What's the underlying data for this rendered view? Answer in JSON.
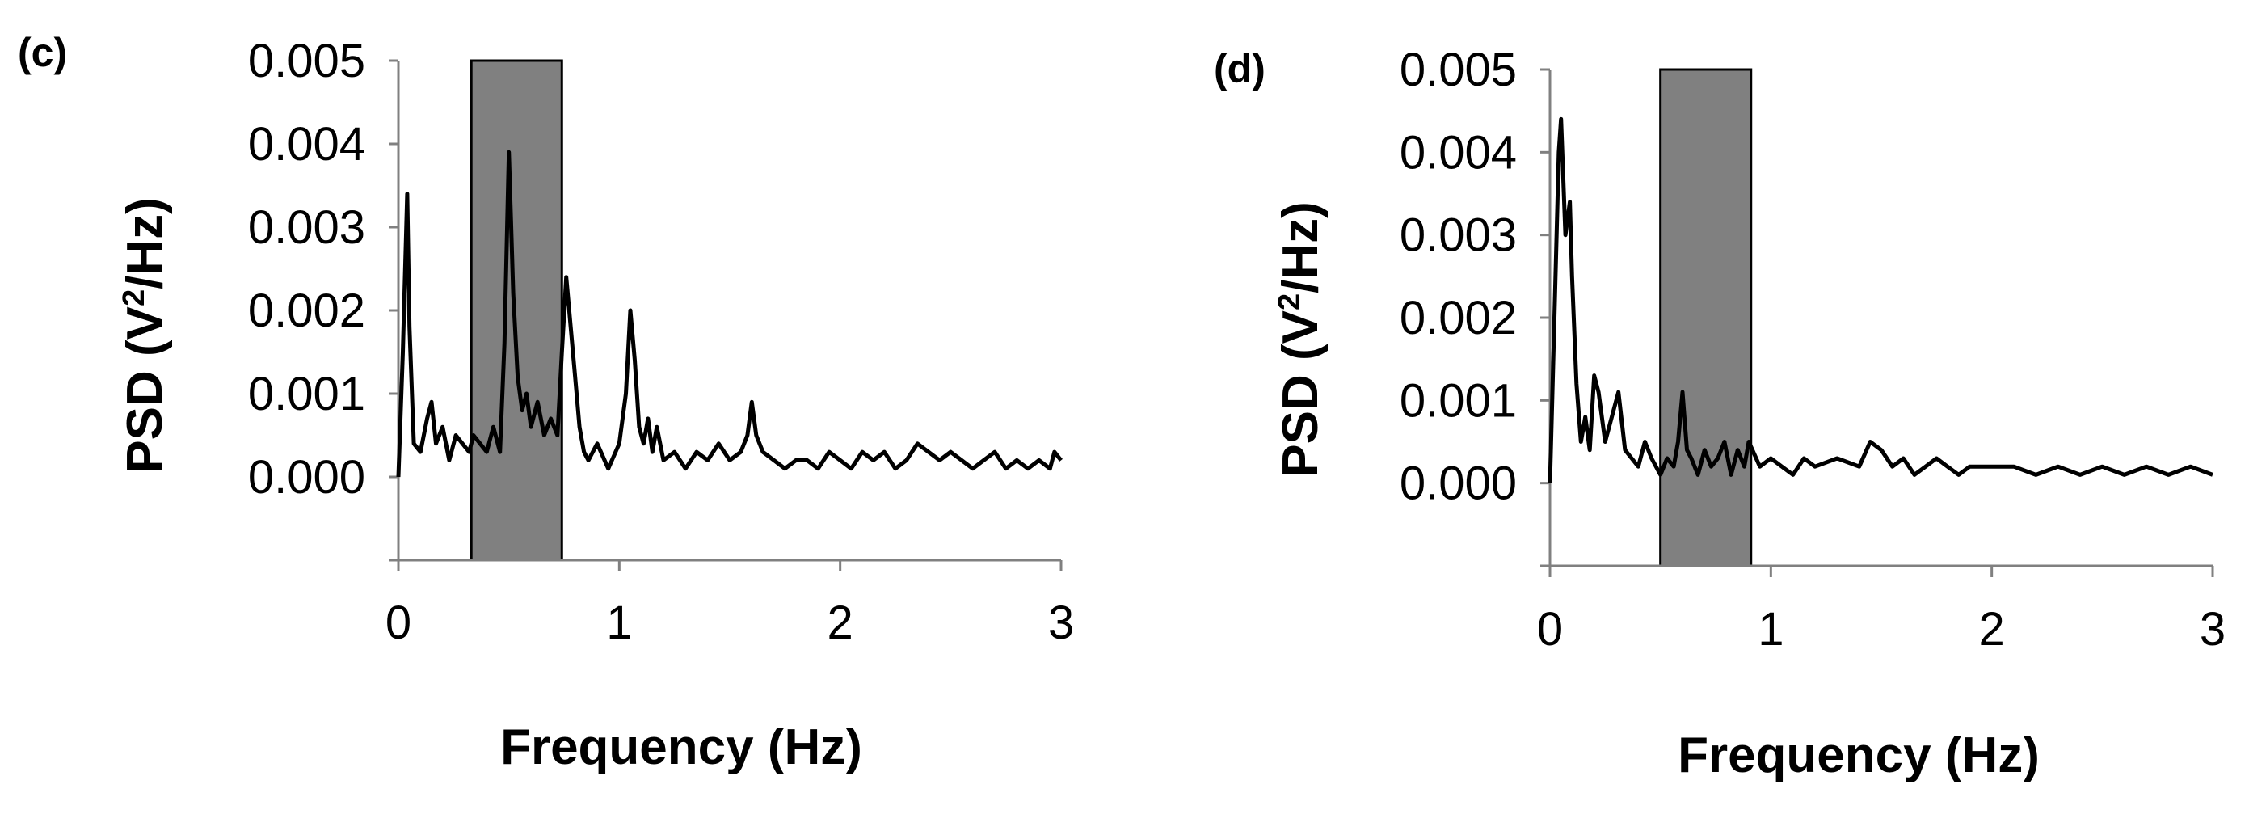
{
  "panels": [
    {
      "label": "(c)",
      "xlabel": "Frequency (Hz)",
      "ylabel_pre": "PSD (V",
      "ylabel_sup": "2",
      "ylabel_post": "/Hz)",
      "yticks": [
        "0.000",
        "0.001",
        "0.002",
        "0.003",
        "0.004",
        "0.005"
      ],
      "xticks": [
        "0",
        "1",
        "2",
        "3"
      ]
    },
    {
      "label": "(d)",
      "xlabel": "Frequency (Hz)",
      "ylabel_pre": "PSD (V",
      "ylabel_sup": "2",
      "ylabel_post": "/Hz)",
      "yticks": [
        "0.000",
        "0.001",
        "0.002",
        "0.003",
        "0.004",
        "0.005"
      ],
      "xticks": [
        "0",
        "1",
        "2",
        "3"
      ]
    }
  ],
  "chart_data": [
    {
      "type": "line",
      "panel": "(c)",
      "xlabel": "Frequency (Hz)",
      "ylabel": "PSD (V2/Hz)",
      "xlim": [
        0,
        3
      ],
      "ylim": [
        -0.001,
        0.005
      ],
      "grid": false,
      "shaded_band": [
        0.33,
        0.74
      ],
      "line_color": "#000000",
      "band_color": "#808080",
      "series": [
        {
          "x": [
            0.0,
            0.02,
            0.04,
            0.05,
            0.07,
            0.1,
            0.13,
            0.15,
            0.17,
            0.2,
            0.23,
            0.26,
            0.29,
            0.32,
            0.34,
            0.37,
            0.4,
            0.43,
            0.46,
            0.48,
            0.5,
            0.52,
            0.54,
            0.56,
            0.58,
            0.6,
            0.63,
            0.66,
            0.69,
            0.72,
            0.74,
            0.76,
            0.78,
            0.8,
            0.82,
            0.84,
            0.86,
            0.9,
            0.95,
            1.0,
            1.03,
            1.05,
            1.07,
            1.09,
            1.11,
            1.13,
            1.15,
            1.17,
            1.2,
            1.25,
            1.3,
            1.35,
            1.4,
            1.45,
            1.5,
            1.55,
            1.58,
            1.6,
            1.62,
            1.65,
            1.7,
            1.75,
            1.8,
            1.85,
            1.9,
            1.95,
            2.0,
            2.05,
            2.1,
            2.15,
            2.2,
            2.25,
            2.3,
            2.35,
            2.4,
            2.45,
            2.5,
            2.55,
            2.6,
            2.65,
            2.7,
            2.75,
            2.8,
            2.85,
            2.9,
            2.95,
            2.97,
            3.0
          ],
          "y": [
            0.0,
            0.0015,
            0.0034,
            0.0018,
            0.0004,
            0.0003,
            0.0007,
            0.0009,
            0.0004,
            0.0006,
            0.0002,
            0.0005,
            0.0004,
            0.0003,
            0.0005,
            0.0004,
            0.0003,
            0.0006,
            0.0003,
            0.0016,
            0.0039,
            0.0022,
            0.0012,
            0.0008,
            0.001,
            0.0006,
            0.0009,
            0.0005,
            0.0007,
            0.0005,
            0.0015,
            0.0024,
            0.0018,
            0.0012,
            0.0006,
            0.0003,
            0.0002,
            0.0004,
            0.0001,
            0.0004,
            0.001,
            0.002,
            0.0014,
            0.0006,
            0.0004,
            0.0007,
            0.0003,
            0.0006,
            0.0002,
            0.0003,
            0.0001,
            0.0003,
            0.0002,
            0.0004,
            0.0002,
            0.0003,
            0.0005,
            0.0009,
            0.0005,
            0.0003,
            0.0002,
            0.0001,
            0.0002,
            0.0002,
            0.0001,
            0.0003,
            0.0002,
            0.0001,
            0.0003,
            0.0002,
            0.0003,
            0.0001,
            0.0002,
            0.0004,
            0.0003,
            0.0002,
            0.0003,
            0.0002,
            0.0001,
            0.0002,
            0.0003,
            0.0001,
            0.0002,
            0.0001,
            0.0002,
            0.0001,
            0.0003,
            0.0002
          ]
        }
      ]
    },
    {
      "type": "line",
      "panel": "(d)",
      "xlabel": "Frequency (Hz)",
      "ylabel": "PSD (V2/Hz)",
      "xlim": [
        0,
        3
      ],
      "ylim": [
        -0.001,
        0.005
      ],
      "grid": false,
      "shaded_band": [
        0.5,
        0.91
      ],
      "line_color": "#000000",
      "band_color": "#808080",
      "series": [
        {
          "x": [
            0.0,
            0.02,
            0.04,
            0.05,
            0.07,
            0.09,
            0.1,
            0.12,
            0.14,
            0.16,
            0.18,
            0.2,
            0.22,
            0.25,
            0.28,
            0.31,
            0.34,
            0.37,
            0.4,
            0.43,
            0.46,
            0.5,
            0.53,
            0.56,
            0.58,
            0.6,
            0.62,
            0.64,
            0.67,
            0.7,
            0.73,
            0.76,
            0.79,
            0.82,
            0.85,
            0.88,
            0.9,
            0.95,
            1.0,
            1.05,
            1.1,
            1.15,
            1.2,
            1.3,
            1.4,
            1.45,
            1.5,
            1.55,
            1.6,
            1.65,
            1.7,
            1.75,
            1.8,
            1.85,
            1.9,
            2.0,
            2.1,
            2.2,
            2.3,
            2.4,
            2.5,
            2.6,
            2.7,
            2.8,
            2.9,
            3.0
          ],
          "y": [
            0.0,
            0.002,
            0.004,
            0.0044,
            0.003,
            0.0034,
            0.0025,
            0.0012,
            0.0005,
            0.0008,
            0.0004,
            0.0013,
            0.0011,
            0.0005,
            0.0008,
            0.0011,
            0.0004,
            0.0003,
            0.0002,
            0.0005,
            0.0003,
            0.0001,
            0.0003,
            0.0002,
            0.0005,
            0.0011,
            0.0004,
            0.0003,
            0.0001,
            0.0004,
            0.0002,
            0.0003,
            0.0005,
            0.0001,
            0.0004,
            0.0002,
            0.0005,
            0.0002,
            0.0003,
            0.0002,
            0.0001,
            0.0003,
            0.0002,
            0.0003,
            0.0002,
            0.0005,
            0.0004,
            0.0002,
            0.0003,
            0.0001,
            0.0002,
            0.0003,
            0.0002,
            0.0001,
            0.0002,
            0.0002,
            0.0002,
            0.0001,
            0.0002,
            0.0001,
            0.0002,
            0.0001,
            0.0002,
            0.0001,
            0.0002,
            0.0001
          ]
        }
      ]
    }
  ]
}
